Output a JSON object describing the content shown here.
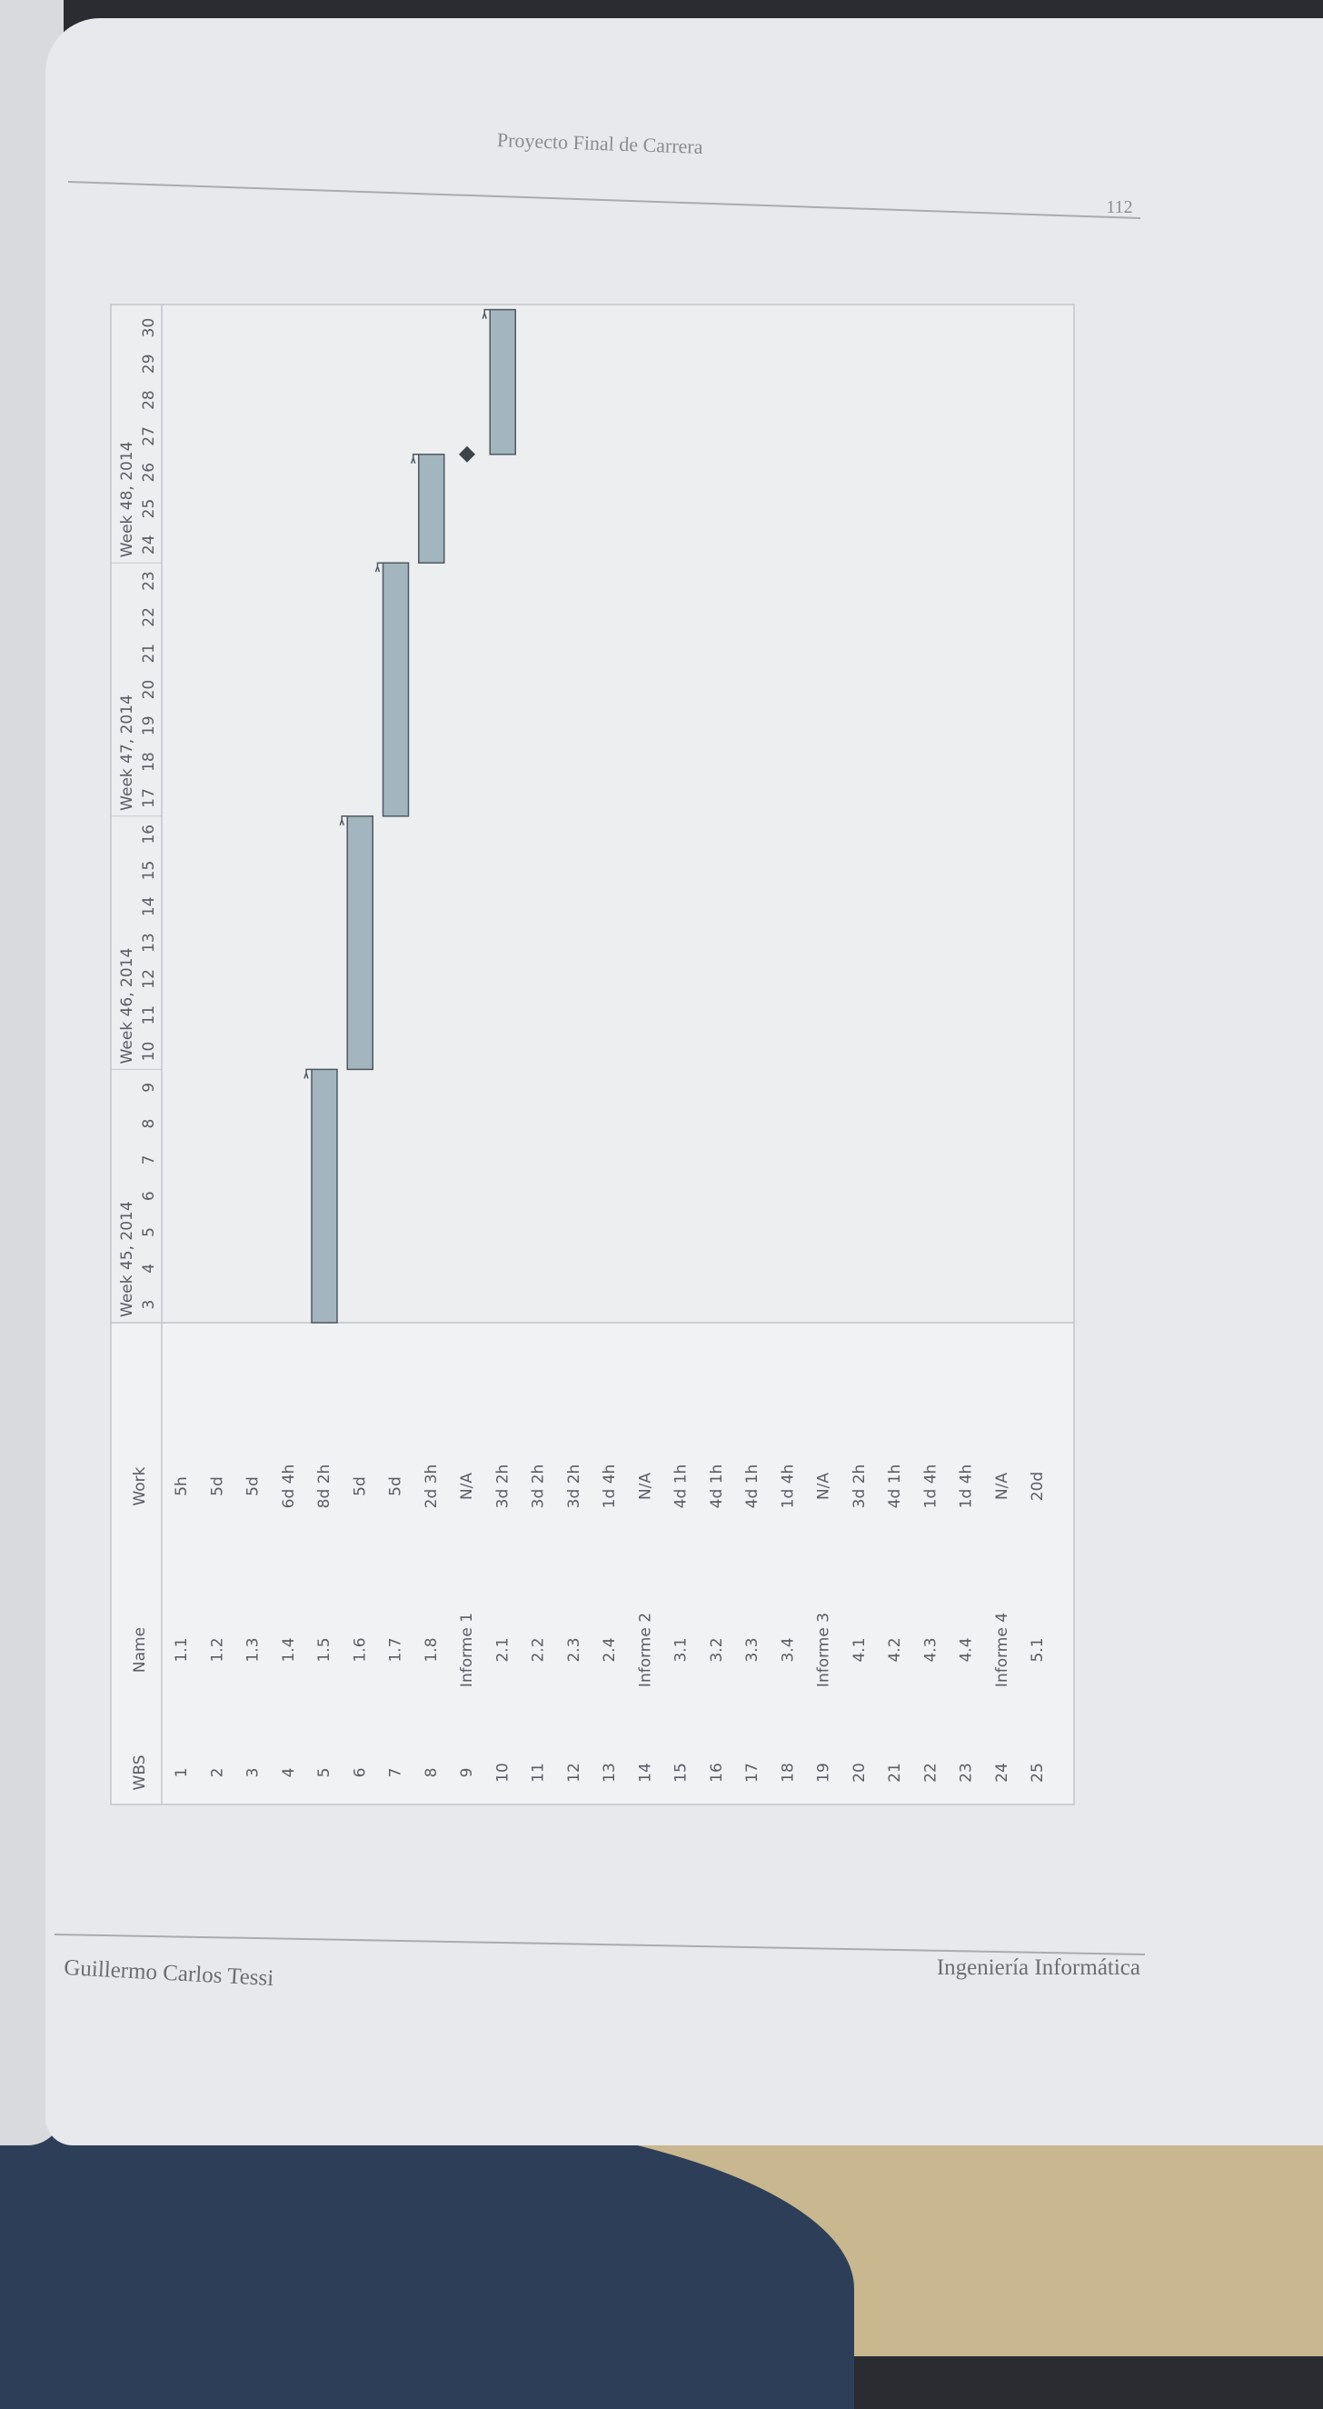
{
  "header": {
    "title": "Proyecto Final de Carrera",
    "page_number": "112"
  },
  "footer": {
    "author": "Guillermo Carlos Tessi",
    "department": "Ingeniería Informática"
  },
  "gantt": {
    "columns": [
      "WBS",
      "Name",
      "Work"
    ],
    "weeks": [
      {
        "label": "Week 45, 2014",
        "days": [
          3,
          4,
          5,
          6,
          7,
          8,
          9
        ]
      },
      {
        "label": "Week 46, 2014",
        "days": [
          10,
          11,
          12,
          13,
          14,
          15,
          16
        ]
      },
      {
        "label": "Week 47, 2014",
        "days": [
          17,
          18,
          19,
          20,
          21,
          22,
          23
        ]
      },
      {
        "label": "Week 48, 2014",
        "days": [
          24,
          25,
          26,
          27,
          28,
          29,
          30
        ]
      }
    ],
    "rows": [
      {
        "cells": [
          "1",
          "1.1",
          "5h"
        ]
      },
      {
        "cells": [
          "2",
          "1.2",
          "5d"
        ]
      },
      {
        "cells": [
          "3",
          "1.3",
          "5d"
        ]
      },
      {
        "cells": [
          "4",
          "1.4",
          "6d 4h"
        ]
      },
      {
        "cells": [
          "5",
          "1.5",
          "8d 2h"
        ],
        "start": 3,
        "end": 10
      },
      {
        "cells": [
          "6",
          "1.6",
          "5d"
        ],
        "start": 10,
        "end": 17
      },
      {
        "cells": [
          "7",
          "1.7",
          "5d"
        ],
        "start": 17,
        "end": 24
      },
      {
        "cells": [
          "8",
          "1.8",
          "2d 3h"
        ],
        "start": 24,
        "end": 27
      },
      {
        "cells": [
          "9",
          "Informe 1",
          "N/A"
        ],
        "milestone": 27
      },
      {
        "cells": [
          "10",
          "2.1",
          "3d 2h"
        ],
        "start": 27,
        "end": 31
      },
      {
        "cells": [
          "11",
          "2.2",
          "3d 2h"
        ]
      },
      {
        "cells": [
          "12",
          "2.3",
          "3d 2h"
        ]
      },
      {
        "cells": [
          "13",
          "2.4",
          "1d 4h"
        ]
      },
      {
        "cells": [
          "14",
          "Informe 2",
          "N/A"
        ]
      },
      {
        "cells": [
          "15",
          "3.1",
          "4d 1h"
        ]
      },
      {
        "cells": [
          "16",
          "3.2",
          "4d 1h"
        ]
      },
      {
        "cells": [
          "17",
          "3.3",
          "4d 1h"
        ]
      },
      {
        "cells": [
          "18",
          "3.4",
          "1d 4h"
        ]
      },
      {
        "cells": [
          "19",
          "Informe 3",
          "N/A"
        ]
      },
      {
        "cells": [
          "20",
          "4.1",
          "3d 2h"
        ]
      },
      {
        "cells": [
          "21",
          "4.2",
          "4d 1h"
        ]
      },
      {
        "cells": [
          "22",
          "4.3",
          "1d 4h"
        ]
      },
      {
        "cells": [
          "23",
          "4.4",
          "1d 4h"
        ]
      },
      {
        "cells": [
          "24",
          "Informe 4",
          "N/A"
        ]
      },
      {
        "cells": [
          "25",
          "5.1",
          "20d"
        ]
      }
    ]
  }
}
